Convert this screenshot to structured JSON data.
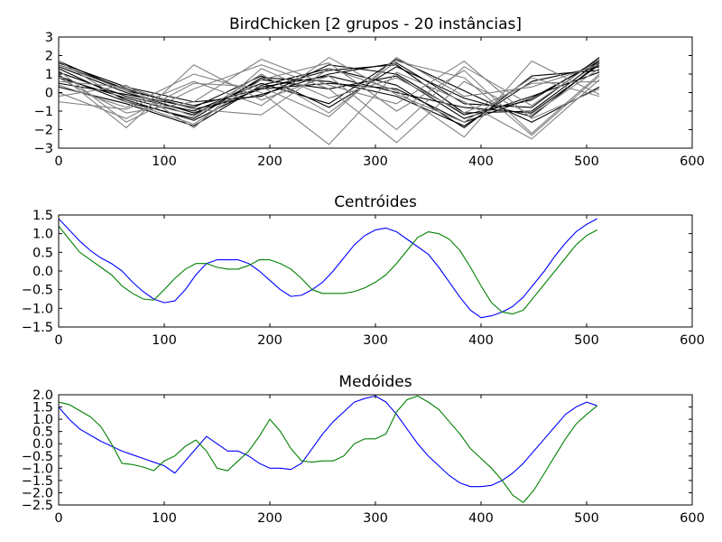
{
  "chart_data": [
    {
      "type": "line",
      "title": "BirdChicken [2 grupos - 20 instâncias]",
      "xlim": [
        0,
        600
      ],
      "ylim": [
        -3,
        3
      ],
      "xticks": [
        0,
        100,
        200,
        300,
        400,
        500,
        600
      ],
      "yticks": [
        3,
        2,
        1,
        0,
        -1,
        -2,
        -3
      ],
      "grid": false,
      "series": [
        {
          "group": 1,
          "color": "#000000",
          "x": [
            0,
            64,
            128,
            192,
            256,
            320,
            384,
            448,
            512
          ],
          "values": [
            1.4,
            0.0,
            -1.1,
            0.2,
            0.5,
            0.2,
            -1.6,
            -0.3,
            1.7
          ]
        },
        {
          "group": 1,
          "color": "#000000",
          "x": [
            0,
            64,
            128,
            192,
            256,
            320,
            384,
            448,
            512
          ],
          "values": [
            0.9,
            -0.5,
            -1.4,
            0.8,
            0.6,
            -0.2,
            -1.8,
            0.6,
            1.4
          ]
        },
        {
          "group": 1,
          "color": "#000000",
          "x": [
            0,
            64,
            128,
            192,
            256,
            320,
            384,
            448,
            512
          ],
          "values": [
            1.7,
            0.1,
            -0.7,
            0.2,
            1.2,
            1.5,
            -1.1,
            -1.0,
            1.7
          ]
        },
        {
          "group": 1,
          "color": "#000000",
          "x": [
            0,
            64,
            128,
            192,
            256,
            320,
            384,
            448,
            512
          ],
          "values": [
            0.5,
            -0.1,
            -0.8,
            0.9,
            -0.8,
            1.4,
            -0.3,
            -1.3,
            1.6
          ]
        },
        {
          "group": 1,
          "color": "#000000",
          "x": [
            0,
            64,
            128,
            192,
            256,
            320,
            384,
            448,
            512
          ],
          "values": [
            1.3,
            -0.4,
            -1.5,
            0.3,
            0.9,
            0.0,
            -0.8,
            -1.1,
            1.5
          ]
        },
        {
          "group": 1,
          "color": "#000000",
          "x": [
            0,
            64,
            128,
            192,
            256,
            320,
            384,
            448,
            512
          ],
          "values": [
            1.6,
            0.3,
            -0.5,
            -0.2,
            1.5,
            1.0,
            -1.2,
            -0.4,
            1.8
          ]
        },
        {
          "group": 1,
          "color": "#000000",
          "x": [
            0,
            64,
            128,
            192,
            256,
            320,
            384,
            448,
            512
          ],
          "values": [
            1.1,
            -0.2,
            -1.0,
            0.5,
            -0.6,
            1.8,
            0.1,
            -1.6,
            0.3
          ]
        },
        {
          "group": 1,
          "color": "#000000",
          "x": [
            0,
            64,
            128,
            192,
            256,
            320,
            384,
            448,
            512
          ],
          "values": [
            0.3,
            -0.6,
            -1.8,
            0.4,
            1.3,
            0.4,
            -1.9,
            0.9,
            1.2
          ]
        },
        {
          "group": 1,
          "color": "#000000",
          "x": [
            0,
            64,
            128,
            192,
            256,
            320,
            384,
            448,
            512
          ],
          "values": [
            1.5,
            0.2,
            -0.9,
            -0.1,
            1.0,
            1.6,
            -0.6,
            -0.8,
            1.9
          ]
        },
        {
          "group": 1,
          "color": "#000000",
          "x": [
            0,
            64,
            128,
            192,
            256,
            320,
            384,
            448,
            512
          ],
          "values": [
            0.8,
            -0.3,
            -1.2,
            0.7,
            0.2,
            0.9,
            -1.4,
            -0.2,
            1.1
          ]
        },
        {
          "group": 2,
          "color": "#808080",
          "x": [
            0,
            64,
            128,
            192,
            256,
            320,
            384,
            448,
            512
          ],
          "values": [
            0.4,
            -0.8,
            1.0,
            0.0,
            -2.8,
            1.1,
            -0.5,
            -2.5,
            0.7
          ]
        },
        {
          "group": 2,
          "color": "#808080",
          "x": [
            0,
            64,
            128,
            192,
            256,
            320,
            384,
            448,
            512
          ],
          "values": [
            1.2,
            -1.6,
            0.2,
            1.5,
            0.2,
            -2.7,
            0.6,
            -1.2,
            1.3
          ]
        },
        {
          "group": 2,
          "color": "#808080",
          "x": [
            0,
            64,
            128,
            192,
            256,
            320,
            384,
            448,
            512
          ],
          "values": [
            -0.5,
            -0.9,
            0.6,
            -0.7,
            1.9,
            -0.1,
            -1.6,
            0.8,
            -0.2
          ]
        },
        {
          "group": 2,
          "color": "#808080",
          "x": [
            0,
            64,
            128,
            192,
            256,
            320,
            384,
            448,
            512
          ],
          "values": [
            1.5,
            0.1,
            -1.3,
            1.0,
            -1.1,
            1.7,
            0.8,
            -2.3,
            0.9
          ]
        },
        {
          "group": 2,
          "color": "#808080",
          "x": [
            0,
            64,
            128,
            192,
            256,
            320,
            384,
            448,
            512
          ],
          "values": [
            0.8,
            -1.1,
            -0.5,
            1.8,
            0.4,
            -0.6,
            1.7,
            -1.4,
            0.2
          ]
        },
        {
          "group": 2,
          "color": "#808080",
          "x": [
            0,
            64,
            128,
            192,
            256,
            320,
            384,
            448,
            512
          ],
          "values": [
            0.0,
            -1.4,
            0.5,
            0.3,
            -1.3,
            1.9,
            -0.2,
            0.3,
            1.5
          ]
        },
        {
          "group": 2,
          "color": "#808080",
          "x": [
            0,
            64,
            128,
            192,
            256,
            320,
            384,
            448,
            512
          ],
          "values": [
            1.7,
            -0.5,
            -1.7,
            0.7,
            1.6,
            -1.0,
            1.2,
            -2.2,
            1.0
          ]
        },
        {
          "group": 2,
          "color": "#808080",
          "x": [
            0,
            64,
            128,
            192,
            256,
            320,
            384,
            448,
            512
          ],
          "values": [
            -0.2,
            0.4,
            -1.9,
            1.3,
            -0.3,
            0.8,
            -1.1,
            0.5,
            0.6
          ]
        },
        {
          "group": 2,
          "color": "#808080",
          "x": [
            0,
            64,
            128,
            192,
            256,
            320,
            384,
            448,
            512
          ],
          "values": [
            1.0,
            -1.9,
            1.5,
            -0.4,
            0.9,
            -2.0,
            1.4,
            -0.7,
            1.8
          ]
        },
        {
          "group": 2,
          "color": "#808080",
          "x": [
            0,
            64,
            128,
            192,
            256,
            320,
            384,
            448,
            512
          ],
          "values": [
            0.6,
            0.3,
            -0.9,
            -1.2,
            1.3,
            0.1,
            -2.4,
            1.7,
            -0.1
          ]
        }
      ]
    },
    {
      "type": "line",
      "title": "Centróides",
      "xlim": [
        0,
        600
      ],
      "ylim": [
        -1.5,
        1.5
      ],
      "xticks": [
        0,
        100,
        200,
        300,
        400,
        500,
        600
      ],
      "yticks": [
        1.5,
        1.0,
        0.5,
        0.0,
        -0.5,
        -1.0,
        -1.5
      ],
      "tick_labels": [
        "1.5",
        "1.0",
        "0.5",
        "0.0",
        "−0.5",
        "−1.0",
        "−1.5"
      ],
      "grid": false,
      "series": [
        {
          "color": "#0000ff",
          "x": [
            0,
            10,
            20,
            30,
            40,
            50,
            60,
            70,
            80,
            90,
            100,
            110,
            120,
            130,
            140,
            150,
            160,
            170,
            180,
            190,
            200,
            210,
            220,
            230,
            240,
            250,
            260,
            270,
            280,
            290,
            300,
            310,
            320,
            330,
            340,
            350,
            360,
            370,
            380,
            390,
            400,
            410,
            420,
            430,
            440,
            450,
            460,
            470,
            480,
            490,
            500,
            510
          ],
          "values": [
            1.4,
            1.1,
            0.8,
            0.55,
            0.35,
            0.2,
            0.0,
            -0.3,
            -0.55,
            -0.75,
            -0.85,
            -0.8,
            -0.5,
            -0.1,
            0.2,
            0.3,
            0.3,
            0.3,
            0.2,
            0.0,
            -0.25,
            -0.5,
            -0.68,
            -0.65,
            -0.5,
            -0.3,
            0.0,
            0.35,
            0.7,
            0.95,
            1.1,
            1.15,
            1.05,
            0.85,
            0.65,
            0.45,
            0.1,
            -0.3,
            -0.7,
            -1.05,
            -1.25,
            -1.2,
            -1.1,
            -0.95,
            -0.7,
            -0.35,
            0.0,
            0.4,
            0.75,
            1.05,
            1.25,
            1.4
          ]
        },
        {
          "color": "#008000",
          "x": [
            0,
            10,
            20,
            30,
            40,
            50,
            60,
            70,
            80,
            90,
            100,
            110,
            120,
            130,
            140,
            150,
            160,
            170,
            180,
            190,
            200,
            210,
            220,
            230,
            240,
            250,
            260,
            270,
            280,
            290,
            300,
            310,
            320,
            330,
            340,
            350,
            360,
            370,
            380,
            390,
            400,
            410,
            420,
            430,
            440,
            450,
            460,
            470,
            480,
            490,
            500,
            510
          ],
          "values": [
            1.2,
            0.85,
            0.5,
            0.3,
            0.1,
            -0.1,
            -0.4,
            -0.6,
            -0.75,
            -0.78,
            -0.5,
            -0.2,
            0.05,
            0.2,
            0.2,
            0.1,
            0.05,
            0.05,
            0.15,
            0.3,
            0.3,
            0.2,
            0.05,
            -0.2,
            -0.5,
            -0.6,
            -0.6,
            -0.6,
            -0.55,
            -0.45,
            -0.3,
            -0.1,
            0.2,
            0.55,
            0.9,
            1.05,
            1.0,
            0.85,
            0.55,
            0.1,
            -0.4,
            -0.85,
            -1.1,
            -1.15,
            -1.05,
            -0.7,
            -0.35,
            0.0,
            0.35,
            0.7,
            0.95,
            1.1
          ]
        }
      ]
    },
    {
      "type": "line",
      "title": "Medóides",
      "xlim": [
        0,
        600
      ],
      "ylim": [
        -2.5,
        2.0
      ],
      "xticks": [
        0,
        100,
        200,
        300,
        400,
        500,
        600
      ],
      "yticks": [
        2.0,
        1.5,
        1.0,
        0.5,
        0.0,
        -0.5,
        -1.0,
        -1.5,
        -2.0,
        -2.5
      ],
      "tick_labels": [
        "2.0",
        "1.5",
        "1.0",
        "0.5",
        "0.0",
        "−0.5",
        "−1.0",
        "−1.5",
        "−2.0",
        "−2.5"
      ],
      "grid": false,
      "series": [
        {
          "color": "#0000ff",
          "x": [
            0,
            10,
            20,
            30,
            40,
            50,
            60,
            70,
            80,
            90,
            100,
            110,
            120,
            130,
            140,
            150,
            160,
            170,
            180,
            190,
            200,
            210,
            220,
            230,
            240,
            250,
            260,
            270,
            280,
            290,
            300,
            310,
            320,
            330,
            340,
            350,
            360,
            370,
            380,
            390,
            400,
            410,
            420,
            430,
            440,
            450,
            460,
            470,
            480,
            490,
            500,
            510
          ],
          "values": [
            1.5,
            1.0,
            0.6,
            0.35,
            0.1,
            -0.1,
            -0.3,
            -0.45,
            -0.6,
            -0.75,
            -0.9,
            -1.2,
            -0.7,
            -0.2,
            0.3,
            0.0,
            -0.3,
            -0.3,
            -0.5,
            -0.8,
            -1.0,
            -1.0,
            -1.05,
            -0.8,
            -0.2,
            0.4,
            0.9,
            1.3,
            1.7,
            1.85,
            1.95,
            1.7,
            1.2,
            0.6,
            0.0,
            -0.5,
            -0.9,
            -1.3,
            -1.6,
            -1.75,
            -1.75,
            -1.7,
            -1.5,
            -1.2,
            -0.8,
            -0.3,
            0.2,
            0.7,
            1.2,
            1.5,
            1.7,
            1.55
          ]
        },
        {
          "color": "#008000",
          "x": [
            0,
            10,
            20,
            30,
            40,
            50,
            60,
            70,
            80,
            90,
            100,
            110,
            120,
            130,
            140,
            150,
            160,
            170,
            180,
            190,
            200,
            210,
            220,
            230,
            240,
            250,
            260,
            270,
            280,
            290,
            300,
            310,
            320,
            330,
            340,
            350,
            360,
            370,
            380,
            390,
            400,
            410,
            420,
            430,
            440,
            450,
            460,
            470,
            480,
            490,
            500,
            510
          ],
          "values": [
            1.7,
            1.6,
            1.35,
            1.1,
            0.7,
            0.0,
            -0.8,
            -0.85,
            -0.95,
            -1.1,
            -0.7,
            -0.5,
            -0.1,
            0.15,
            -0.3,
            -1.0,
            -1.1,
            -0.7,
            -0.3,
            0.3,
            1.0,
            0.5,
            -0.2,
            -0.7,
            -0.75,
            -0.7,
            -0.7,
            -0.5,
            0.0,
            0.2,
            0.2,
            0.4,
            1.3,
            1.8,
            1.95,
            1.7,
            1.4,
            0.9,
            0.4,
            -0.2,
            -0.6,
            -1.0,
            -1.5,
            -2.1,
            -2.4,
            -1.9,
            -1.2,
            -0.5,
            0.2,
            0.8,
            1.2,
            1.55
          ]
        }
      ]
    }
  ]
}
